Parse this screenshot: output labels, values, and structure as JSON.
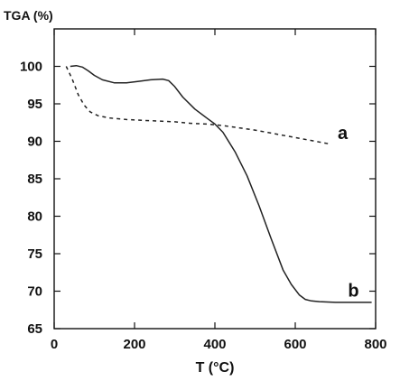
{
  "chart_data": {
    "type": "line",
    "title": "",
    "ylabel": "TGA (%)",
    "xlabel": "T (°C)",
    "xlim": [
      0,
      800
    ],
    "ylim": [
      65,
      105
    ],
    "xticks": [
      0,
      200,
      400,
      600,
      800
    ],
    "yticks": [
      65,
      70,
      75,
      80,
      85,
      90,
      95,
      100
    ],
    "grid": false,
    "legend": "none",
    "series": [
      {
        "name": "a",
        "style": "dashed",
        "color": "#222222",
        "x": [
          30,
          45,
          60,
          75,
          90,
          110,
          140,
          180,
          220,
          260,
          300,
          340,
          380,
          420,
          460,
          500,
          540,
          580,
          620,
          660,
          690
        ],
        "y": [
          100.0,
          98.3,
          96.2,
          94.8,
          93.9,
          93.4,
          93.1,
          92.9,
          92.8,
          92.7,
          92.6,
          92.4,
          92.3,
          92.1,
          91.8,
          91.5,
          91.1,
          90.7,
          90.3,
          89.9,
          89.6
        ]
      },
      {
        "name": "b",
        "style": "solid",
        "color": "#222222",
        "x": [
          40,
          55,
          70,
          85,
          100,
          120,
          150,
          180,
          210,
          240,
          270,
          285,
          300,
          320,
          350,
          380,
          400,
          420,
          450,
          480,
          510,
          540,
          570,
          590,
          610,
          625,
          640,
          660,
          700,
          750,
          790
        ],
        "y": [
          100.0,
          100.1,
          99.9,
          99.4,
          98.8,
          98.2,
          97.8,
          97.8,
          98.0,
          98.2,
          98.3,
          98.1,
          97.3,
          95.9,
          94.3,
          93.1,
          92.3,
          91.2,
          88.6,
          85.4,
          81.4,
          77.0,
          72.8,
          70.9,
          69.5,
          68.9,
          68.7,
          68.6,
          68.5,
          68.5,
          68.5
        ]
      }
    ],
    "annotations": [
      {
        "text": "a",
        "x": 718,
        "y": 90.3
      },
      {
        "text": "b",
        "x": 745,
        "y": 69.3
      }
    ]
  }
}
